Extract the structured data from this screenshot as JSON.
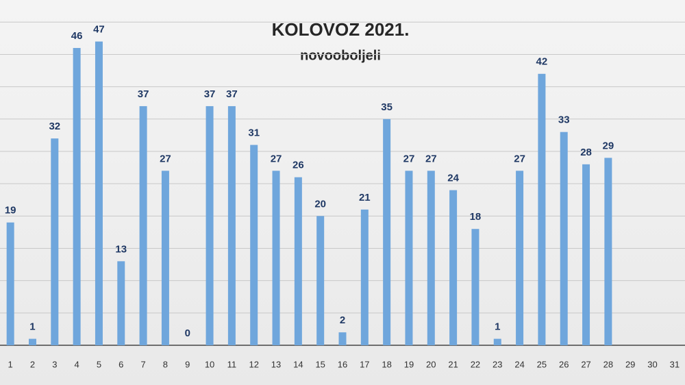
{
  "chart_data": {
    "type": "bar",
    "title": "KOLOVOZ 2021.",
    "subtitle": "novooboljeli",
    "categories": [
      "1",
      "2",
      "3",
      "4",
      "5",
      "6",
      "7",
      "8",
      "9",
      "10",
      "11",
      "12",
      "13",
      "14",
      "15",
      "16",
      "17",
      "18",
      "19",
      "20",
      "21",
      "22",
      "23",
      "24",
      "25",
      "26",
      "27",
      "28",
      "29",
      "30",
      "31"
    ],
    "values": [
      19,
      1,
      32,
      46,
      47,
      13,
      37,
      27,
      0,
      37,
      37,
      31,
      27,
      26,
      20,
      2,
      21,
      35,
      27,
      27,
      24,
      18,
      1,
      27,
      42,
      33,
      28,
      29,
      null,
      null,
      null
    ],
    "color": "#6fa6dc",
    "label_color": "#1f3864",
    "ylim": [
      0,
      53
    ],
    "yticks": [
      0,
      5,
      10,
      15,
      20,
      25,
      30,
      35,
      40,
      45,
      50
    ],
    "grid": true
  }
}
